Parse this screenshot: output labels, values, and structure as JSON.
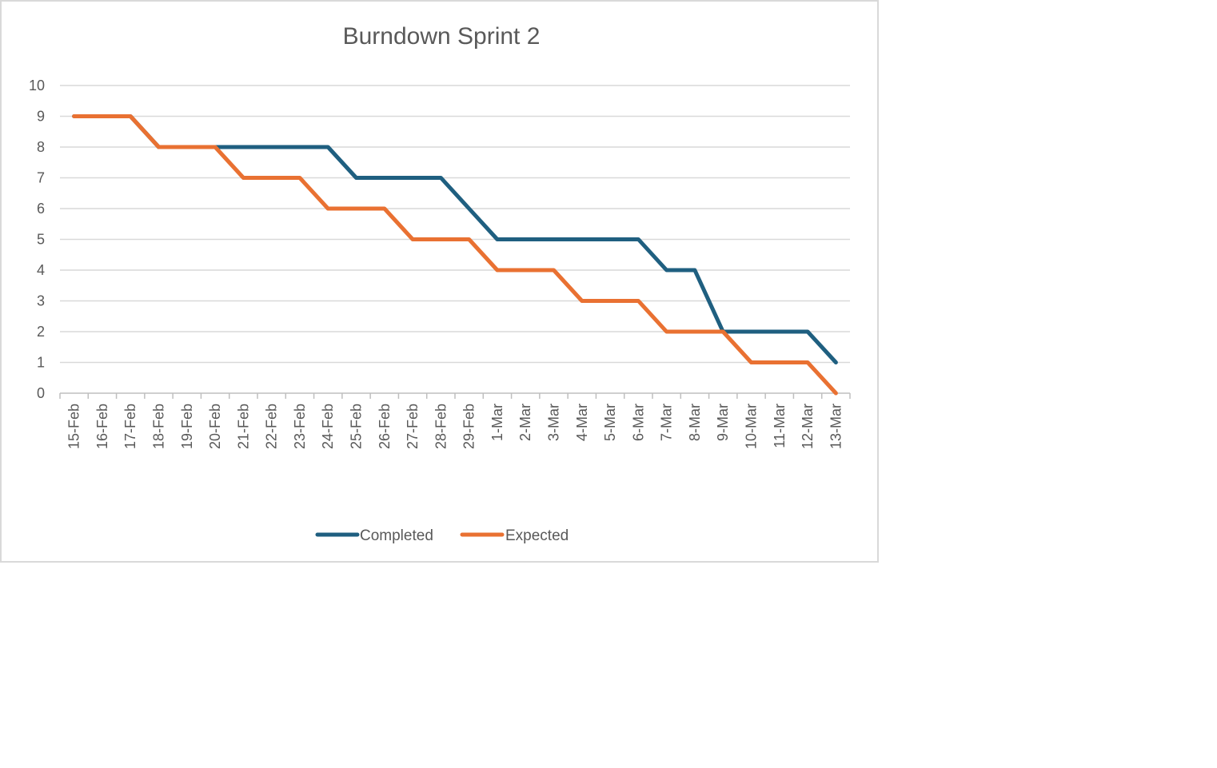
{
  "chart_data": {
    "type": "line",
    "title": "Burndown Sprint 2",
    "xlabel": "",
    "ylabel": "",
    "ylim": [
      0,
      10
    ],
    "yticks": [
      "0",
      "1",
      "2",
      "3",
      "4",
      "5",
      "6",
      "7",
      "8",
      "9",
      "10"
    ],
    "categories": [
      "15-Feb",
      "16-Feb",
      "17-Feb",
      "18-Feb",
      "19-Feb",
      "20-Feb",
      "21-Feb",
      "22-Feb",
      "23-Feb",
      "24-Feb",
      "25-Feb",
      "26-Feb",
      "27-Feb",
      "28-Feb",
      "29-Feb",
      "1-Mar",
      "2-Mar",
      "3-Mar",
      "4-Mar",
      "5-Mar",
      "6-Mar",
      "7-Mar",
      "8-Mar",
      "9-Mar",
      "10-Mar",
      "11-Mar",
      "12-Mar",
      "13-Mar"
    ],
    "series": [
      {
        "name": "Completed",
        "color": "#1f5f80",
        "values": [
          9,
          9,
          9,
          8,
          8,
          8,
          8,
          8,
          8,
          8,
          7,
          7,
          7,
          7,
          6,
          5,
          5,
          5,
          5,
          5,
          5,
          4,
          4,
          2,
          2,
          2,
          2,
          1
        ]
      },
      {
        "name": "Expected",
        "color": "#e97132",
        "values": [
          9,
          9,
          9,
          8,
          8,
          8,
          7,
          7,
          7,
          6,
          6,
          6,
          5,
          5,
          5,
          4,
          4,
          4,
          3,
          3,
          3,
          2,
          2,
          2,
          1,
          1,
          1,
          0
        ]
      }
    ],
    "grid": true,
    "legend_position": "bottom"
  }
}
